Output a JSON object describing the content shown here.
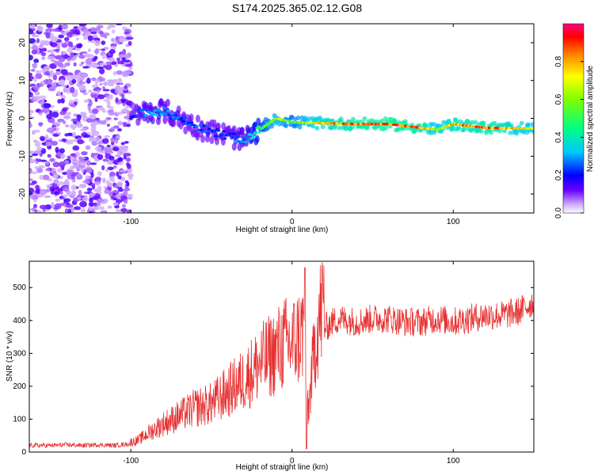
{
  "title": "S174.2025.365.02.12.G08",
  "chart_data": [
    {
      "type": "heatmap",
      "name": "spectrogram",
      "xlabel": "Height of straight line (km)",
      "ylabel": "Frequency (Hz)",
      "xlim": [
        -163,
        150
      ],
      "ylim": [
        -25,
        25
      ],
      "x_ticks": [
        -100,
        0,
        100
      ],
      "x_tick_labels": [
        "-100",
        "0",
        "100"
      ],
      "y_ticks": [
        -20,
        -10,
        0,
        10,
        20
      ],
      "y_tick_labels": [
        "-20",
        "-10",
        "0",
        "10",
        "20"
      ],
      "colorbar": {
        "label": "Normalized spectral amplitude",
        "range": [
          0,
          1
        ],
        "ticks": [
          0,
          0.2,
          0.4,
          0.6,
          0.8
        ],
        "tick_labels": [
          "0.0",
          "0.2",
          "0.4",
          "0.6",
          "0.8"
        ]
      },
      "ridge": {
        "description_points_x": [
          -100,
          -90,
          -80,
          -70,
          -60,
          -50,
          -40,
          -30,
          -20,
          -10,
          0,
          10,
          20,
          40,
          60,
          80,
          90,
          100,
          120,
          150
        ],
        "frequency_y": [
          1,
          1.5,
          2,
          0,
          -2,
          -3.5,
          -4.5,
          -6,
          -3,
          0,
          -1,
          -1.2,
          -1.3,
          -1.5,
          -1.5,
          -2.5,
          -3,
          -1.5,
          -2.5,
          -2.7
        ],
        "amplitude": [
          0.2,
          0.3,
          0.3,
          0.25,
          0.25,
          0.25,
          0.25,
          0.3,
          0.5,
          0.7,
          0.6,
          0.7,
          0.8,
          0.9,
          0.95,
          0.9,
          0.7,
          0.85,
          0.9,
          0.7
        ]
      },
      "noise_region_x": [
        -163,
        -100
      ]
    },
    {
      "type": "line",
      "name": "snr",
      "xlabel": "Height of straight line (km)",
      "ylabel": "SNR (10 * v/v)",
      "xlim": [
        -163,
        150
      ],
      "ylim": [
        0,
        580
      ],
      "x_ticks": [
        -100,
        0,
        100
      ],
      "x_tick_labels": [
        "-100",
        "0",
        "100"
      ],
      "y_ticks": [
        0,
        100,
        200,
        300,
        400,
        500
      ],
      "y_tick_labels": [
        "0",
        "100",
        "200",
        "300",
        "400",
        "500"
      ],
      "color": "#e83030",
      "series": [
        {
          "name": "SNR",
          "x": [
            -163,
            -150,
            -140,
            -130,
            -120,
            -110,
            -100,
            -95,
            -90,
            -80,
            -70,
            -60,
            -50,
            -40,
            -30,
            -20,
            -10,
            -5,
            0,
            5,
            8,
            10,
            15,
            20,
            25,
            30,
            40,
            50,
            60,
            70,
            80,
            90,
            100,
            110,
            120,
            130,
            140,
            150
          ],
          "values": [
            20,
            20,
            22,
            20,
            22,
            20,
            25,
            30,
            45,
            70,
            90,
            110,
            120,
            150,
            180,
            220,
            250,
            270,
            270,
            290,
            310,
            100,
            300,
            380,
            400,
            410,
            400,
            410,
            410,
            400,
            400,
            410,
            400,
            410,
            420,
            420,
            430,
            460
          ]
        }
      ]
    }
  ]
}
